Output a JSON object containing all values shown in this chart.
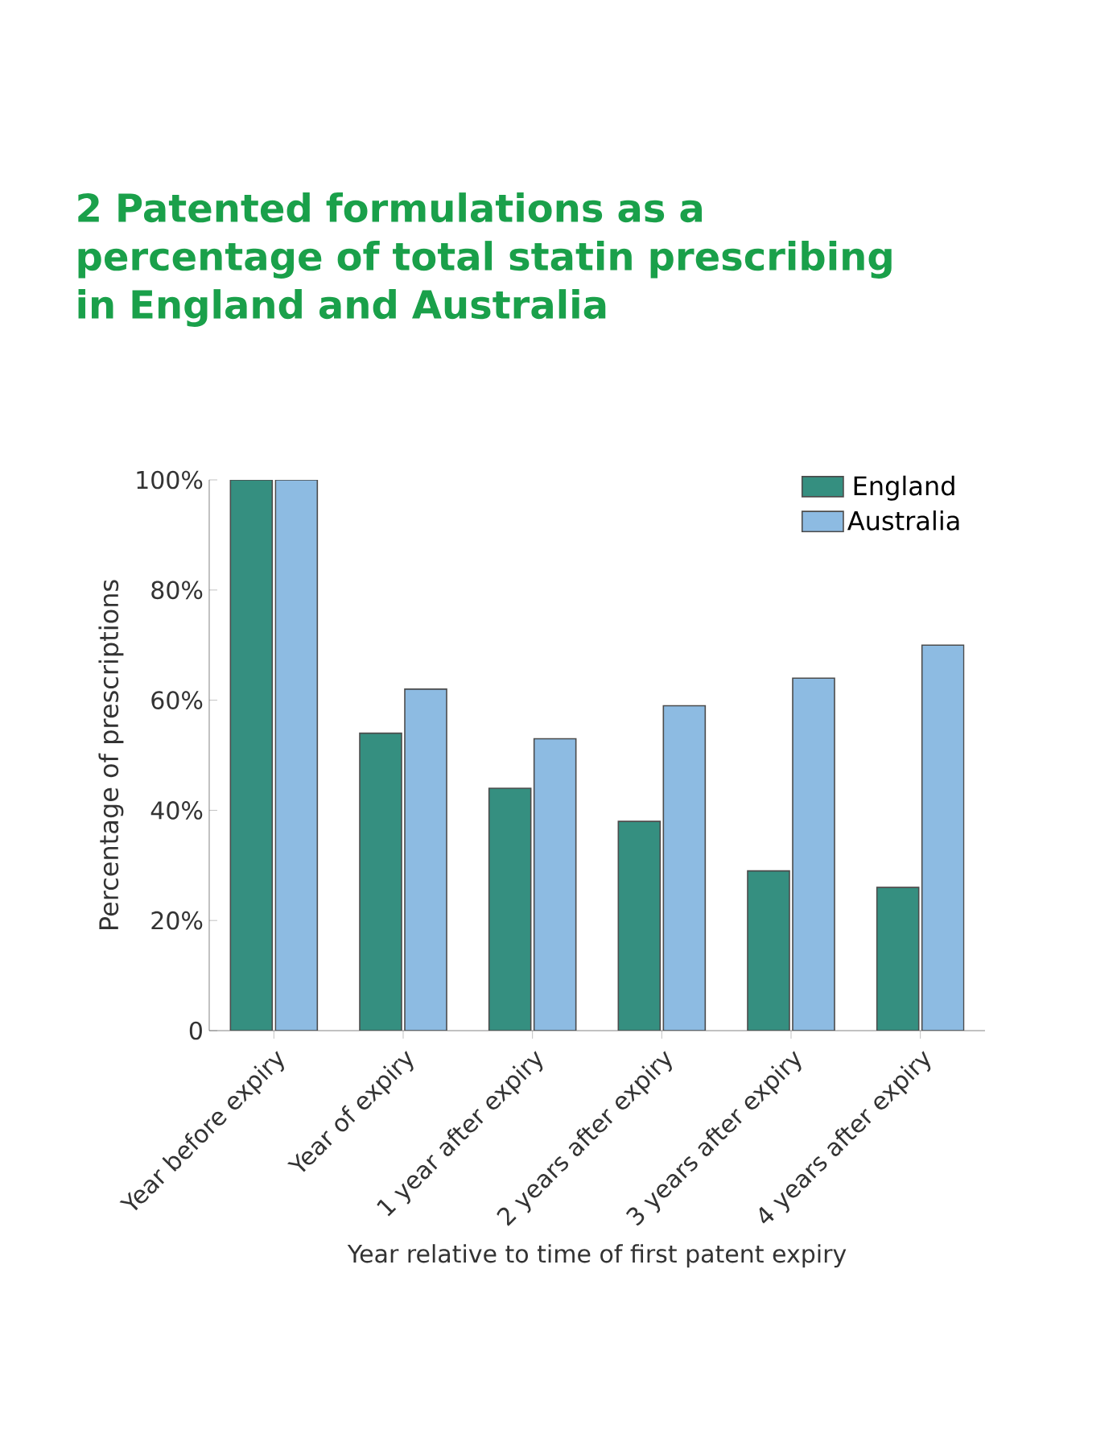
{
  "chart_data": {
    "type": "bar",
    "title": "2 Patented formulations as a percentage of total statin prescribing in England and Australia",
    "categories": [
      "Year before expiry",
      "Year of expiry",
      "1 year after expiry",
      "2 years after expiry",
      "3 years after expiry",
      "4 years after expiry"
    ],
    "series": [
      {
        "name": "England",
        "color": "#358f80",
        "values": [
          100,
          54,
          44,
          38,
          29,
          26
        ]
      },
      {
        "name": "Australia",
        "color": "#8dbbe2",
        "values": [
          100,
          62,
          53,
          59,
          64,
          70
        ]
      }
    ],
    "xlabel": "Year relative to time of first patent expiry",
    "ylabel": "Percentage of prescriptions",
    "ylim": [
      0,
      100
    ],
    "yticks": [
      {
        "value": 0,
        "label": "0"
      },
      {
        "value": 20,
        "label": "20%"
      },
      {
        "value": 40,
        "label": "40%"
      },
      {
        "value": 60,
        "label": "60%"
      },
      {
        "value": 80,
        "label": "80%"
      },
      {
        "value": 100,
        "label": "100%"
      }
    ],
    "legend": "top right",
    "grid": false
  }
}
